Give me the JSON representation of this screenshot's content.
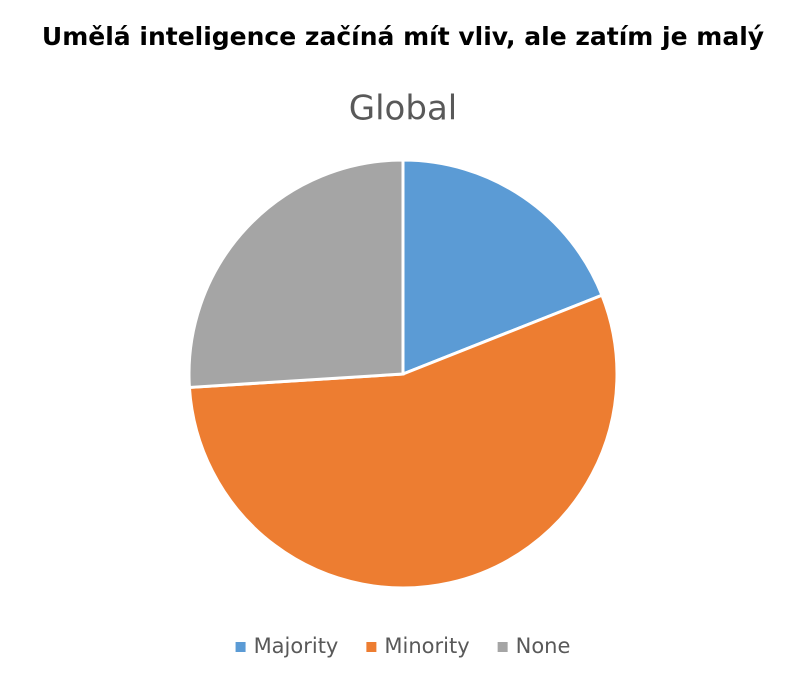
{
  "chart_data": {
    "type": "pie",
    "title": "Umělá inteligence začíná mít vliv, ale zatím je malý",
    "subtitle": "Global",
    "categories": [
      "Majority",
      "Minority",
      "None"
    ],
    "values": [
      19,
      55,
      26
    ],
    "colors": [
      "#5b9bd5",
      "#ed7d31",
      "#a5a5a5"
    ],
    "legend": "bottom"
  }
}
